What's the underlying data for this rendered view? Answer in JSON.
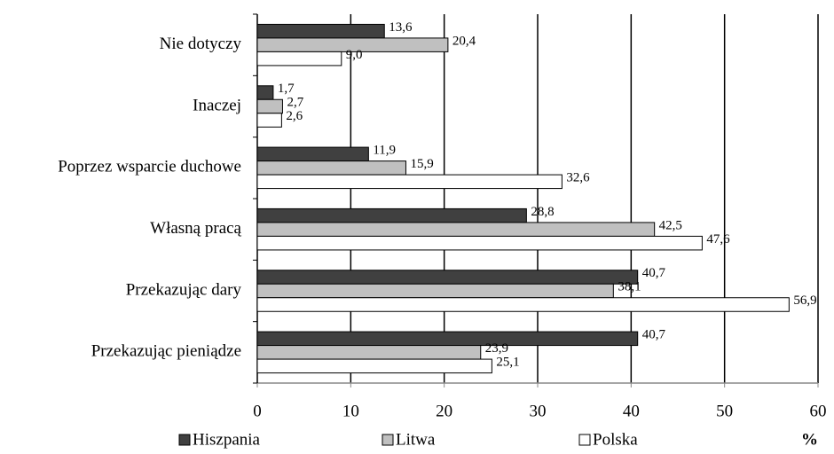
{
  "chart_data": {
    "type": "bar",
    "orientation": "horizontal",
    "categories": [
      "Nie dotyczy",
      "Inaczej",
      "Poprzez wsparcie duchowe",
      "Własną pracą",
      "Przekazując dary",
      "Przekazując pieniądze"
    ],
    "series": [
      {
        "name": "Hiszpania",
        "color": "#404040",
        "values": [
          13.6,
          1.7,
          11.9,
          28.8,
          40.7,
          40.7
        ],
        "value_labels": [
          "13,6",
          "1,7",
          "11,9",
          "28,8",
          "40,7",
          "40,7"
        ]
      },
      {
        "name": "Litwa",
        "color": "#c0c0c0",
        "values": [
          20.4,
          2.7,
          15.9,
          42.5,
          38.1,
          23.9
        ],
        "value_labels": [
          "20,4",
          "2,7",
          "15,9",
          "42,5",
          "38,1",
          "23,9"
        ]
      },
      {
        "name": "Polska",
        "color": "#ffffff",
        "values": [
          9.0,
          2.6,
          32.6,
          47.6,
          56.9,
          25.1
        ],
        "value_labels": [
          "9,0",
          "2,6",
          "32,6",
          "47,6",
          "56,9",
          "25,1"
        ]
      }
    ],
    "xlim": [
      0,
      60
    ],
    "xticks": [
      0,
      10,
      20,
      30,
      40,
      50,
      60
    ],
    "x_label": "%",
    "grid": true
  }
}
